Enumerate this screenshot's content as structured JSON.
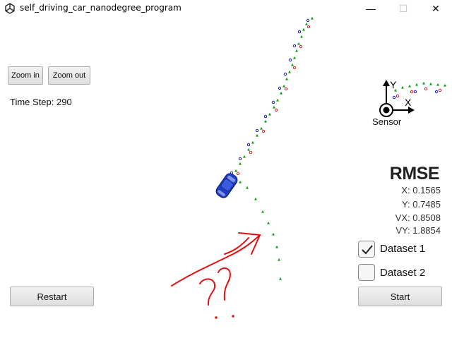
{
  "window": {
    "title": "self_driving_car_nanodegree_program",
    "minimize_label": "—",
    "maximize_label": "☐",
    "close_label": "✕"
  },
  "controls": {
    "zoom_in": "Zoom in",
    "zoom_out": "Zoom out",
    "restart": "Restart",
    "start": "Start"
  },
  "status": {
    "time_step_label": "Time Step: 290"
  },
  "rmse": {
    "title": "RMSE",
    "x": "X: 0.1565",
    "y": "Y: 0.7485",
    "vx": "VX: 0.8508",
    "vy": "VY: 1.8854"
  },
  "datasets": [
    {
      "label": "Dataset 1",
      "checked": true
    },
    {
      "label": "Dataset 2",
      "checked": false
    }
  ],
  "sensor": {
    "label": "Sensor",
    "axis_x": "X",
    "axis_y": "Y"
  },
  "colors": {
    "lidar": "#d22020",
    "radar": "#1a1ad0",
    "estimate": "#18a018",
    "car": "#1e3fc0",
    "annotation": "#e01010"
  },
  "annotation": {
    "text": "??"
  }
}
